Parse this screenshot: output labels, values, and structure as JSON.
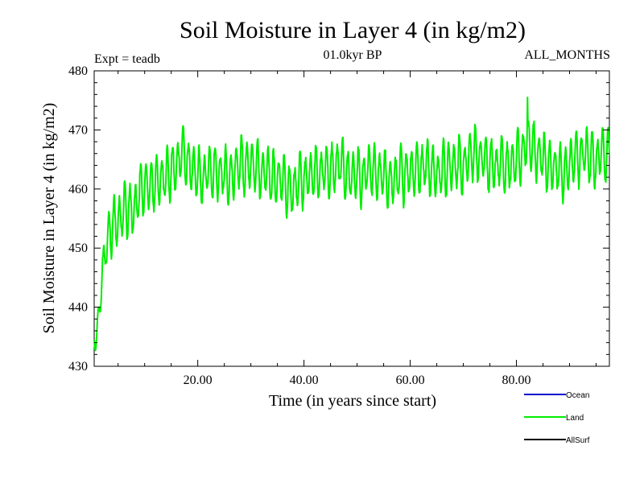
{
  "chart_data": {
    "type": "line",
    "title": "Soil Moisture in Layer 4 (in kg/m2)",
    "subtitle_left": "Expt = teadb",
    "subtitle_center": "01.0kyr BP",
    "subtitle_right": "ALL_MONTHS",
    "xlabel": "Time (in years since start)",
    "ylabel": "Soil Moisture in Layer 4 (in kg/m2)",
    "xlim": [
      0.5,
      97.5
    ],
    "ylim": [
      430,
      480
    ],
    "x_ticks": [
      20,
      40,
      60,
      80
    ],
    "x_tick_labels": [
      "20.00",
      "40.00",
      "60.00",
      "80.00"
    ],
    "y_ticks": [
      430,
      440,
      450,
      460,
      470,
      480
    ],
    "y_tick_labels": [
      "430",
      "440",
      "450",
      "460",
      "470",
      "480"
    ],
    "legend": [
      {
        "name": "Ocean",
        "color": "#0000cc"
      },
      {
        "name": "Land",
        "color": "#00ee00"
      },
      {
        "name": "AllSurf",
        "color": "#000000"
      }
    ],
    "series": [
      {
        "name": "Land",
        "color": "#00ee00",
        "sampling": "monthly",
        "x_start": 0.5,
        "x_end": 97.5,
        "annual_mean_x": [
          1,
          2,
          3,
          4,
          5,
          6,
          7,
          8,
          9,
          10,
          11,
          12,
          13,
          14,
          15,
          16,
          17,
          18,
          19,
          20,
          21,
          22,
          23,
          24,
          25,
          26,
          27,
          28,
          29,
          30,
          31,
          32,
          33,
          34,
          35,
          36,
          37,
          38,
          39,
          40,
          41,
          42,
          43,
          44,
          45,
          46,
          47,
          48,
          49,
          50,
          51,
          52,
          53,
          54,
          55,
          56,
          57,
          58,
          59,
          60,
          61,
          62,
          63,
          64,
          65,
          66,
          67,
          68,
          69,
          70,
          71,
          72,
          73,
          74,
          75,
          76,
          77,
          78,
          79,
          80,
          81,
          82,
          83,
          84,
          85,
          86,
          87,
          88,
          89,
          90,
          91,
          92,
          93,
          94,
          95,
          96,
          97
        ],
        "annual_mean": [
          438,
          446,
          451,
          454,
          455,
          456,
          457,
          456,
          459,
          461,
          460,
          461,
          462,
          462,
          463,
          464,
          466,
          465,
          463,
          462,
          462,
          463,
          463,
          463,
          462,
          462,
          463,
          464,
          464,
          464,
          464,
          463,
          463,
          462,
          462,
          461,
          460,
          460,
          461,
          462,
          462,
          463,
          463,
          463,
          463,
          464,
          464,
          463,
          462,
          462,
          462,
          463,
          463,
          463,
          462,
          461,
          462,
          462,
          463,
          463,
          463,
          464,
          464,
          463,
          463,
          463,
          464,
          464,
          464,
          464,
          465,
          466,
          466,
          465,
          464,
          464,
          464,
          464,
          464,
          465,
          466,
          468,
          467,
          466,
          465,
          464,
          464,
          463,
          463,
          464,
          465,
          466,
          466,
          465,
          465,
          466,
          466
        ],
        "seasonal_amplitude": [
          4,
          4,
          4,
          4,
          4,
          4,
          4,
          4,
          4,
          4,
          4,
          4,
          4,
          4,
          4,
          4,
          4,
          4,
          4,
          4,
          4,
          4,
          4,
          4,
          4,
          4,
          4,
          4,
          4,
          4,
          4,
          4,
          4,
          4,
          4,
          4,
          4,
          4,
          4,
          4,
          4,
          4,
          4,
          4,
          4,
          4,
          4,
          4,
          4,
          4,
          4,
          4,
          4,
          4,
          4,
          4,
          4,
          4,
          4,
          4,
          4,
          4,
          4,
          4,
          4,
          4,
          4,
          4,
          4,
          4,
          4,
          4,
          4,
          4,
          4,
          4,
          4,
          4,
          4,
          4,
          4,
          4,
          4,
          4,
          4,
          4,
          4,
          4,
          4,
          4,
          4,
          4,
          4,
          4,
          4,
          4,
          4
        ],
        "peak_value": 475.5,
        "peak_x": 82.1,
        "min_value": 434.5,
        "min_x": 0.6
      }
    ]
  }
}
